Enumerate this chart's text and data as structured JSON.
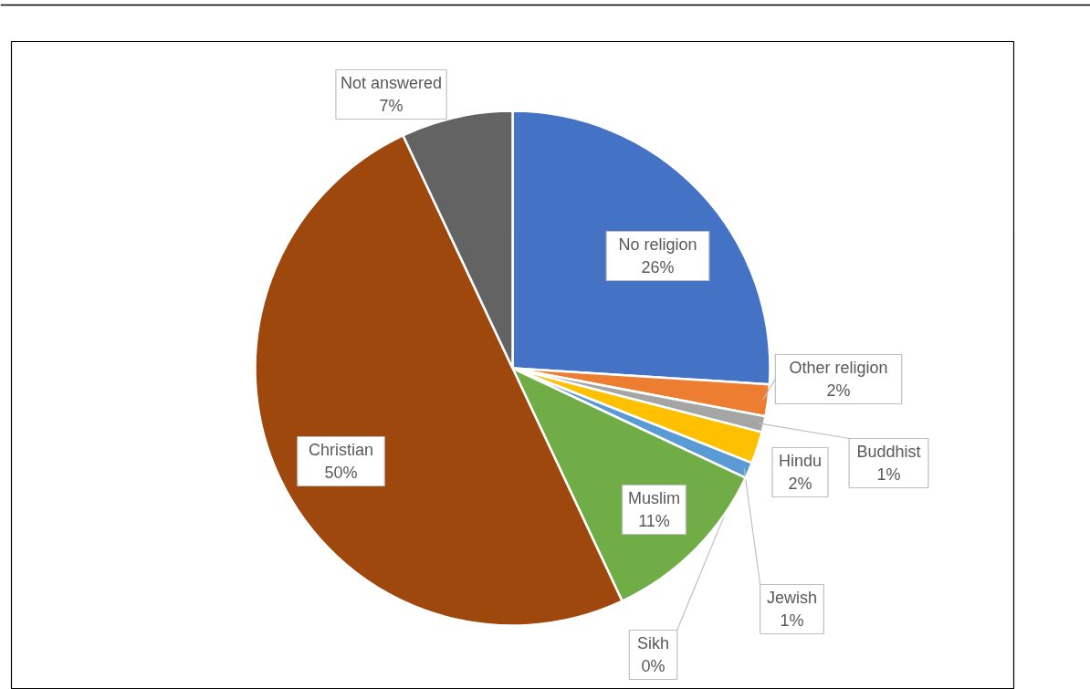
{
  "chart_data": {
    "type": "pie",
    "categories": [
      "No religion",
      "Other religion",
      "Buddhist",
      "Hindu",
      "Jewish",
      "Sikh",
      "Muslim",
      "Christian",
      "Not answered"
    ],
    "values": [
      26,
      2,
      1,
      2,
      1,
      0,
      11,
      50,
      7
    ],
    "colors": [
      "#4472c4",
      "#ed7d31",
      "#a5a5a5",
      "#ffc000",
      "#5b9bd5",
      "#264478",
      "#70ad47",
      "#9e480e",
      "#636363"
    ],
    "value_labels": [
      "26%",
      "2%",
      "1%",
      "2%",
      "1%",
      "0%",
      "11%",
      "50%",
      "7%"
    ]
  }
}
